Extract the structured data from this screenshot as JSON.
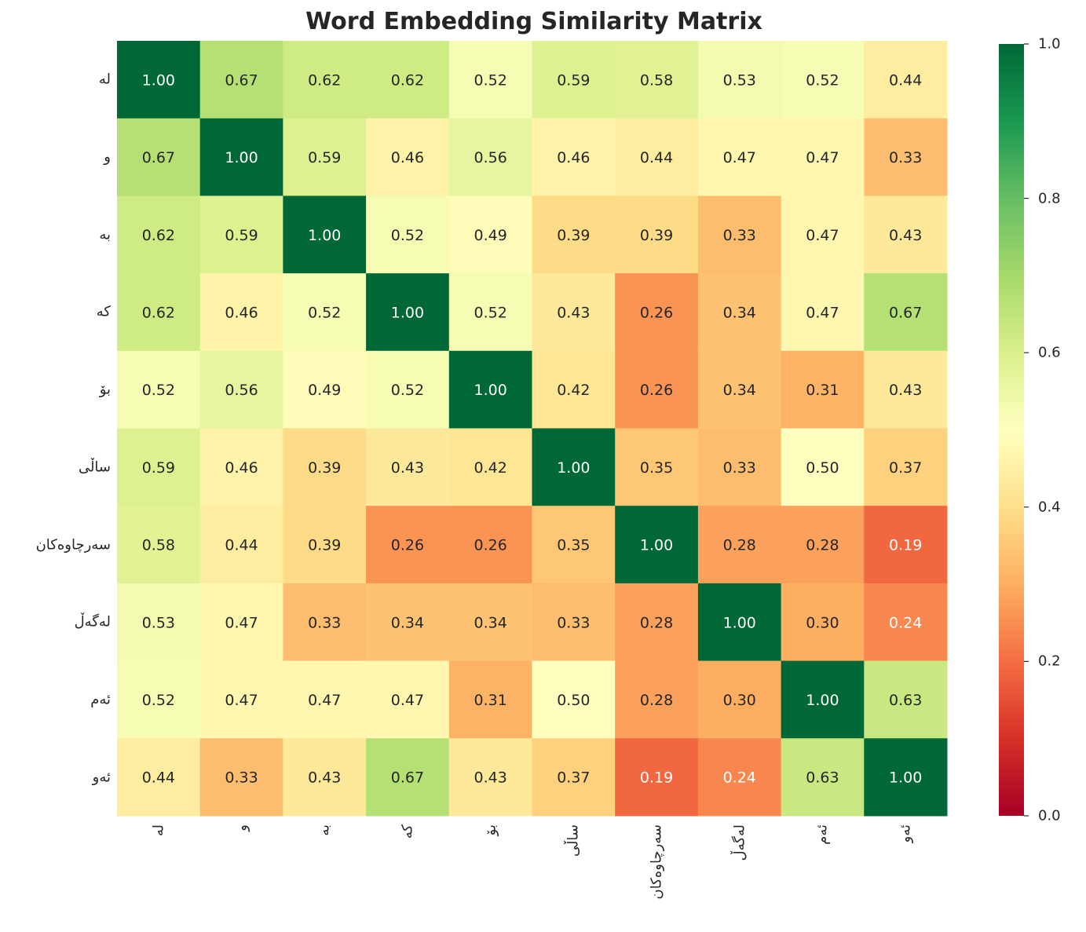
{
  "chart_data": {
    "type": "heatmap",
    "title": "Word Embedding Similarity Matrix",
    "colormap": "RdYlGn",
    "vmin": 0.0,
    "vmax": 1.0,
    "x_labels": [
      "لە",
      "و",
      "بە",
      "کە",
      "بۆ",
      "ساڵی",
      "سەرچاوەکان",
      "لەگەڵ",
      "ئەم",
      "ئەو"
    ],
    "y_labels": [
      "لە",
      "و",
      "بە",
      "کە",
      "بۆ",
      "ساڵی",
      "سەرچاوەکان",
      "لەگەڵ",
      "ئەم",
      "ئەو"
    ],
    "values": [
      [
        1.0,
        0.67,
        0.62,
        0.62,
        0.52,
        0.59,
        0.58,
        0.53,
        0.52,
        0.44
      ],
      [
        0.67,
        1.0,
        0.59,
        0.46,
        0.56,
        0.46,
        0.44,
        0.47,
        0.47,
        0.33
      ],
      [
        0.62,
        0.59,
        1.0,
        0.52,
        0.49,
        0.39,
        0.39,
        0.33,
        0.47,
        0.43
      ],
      [
        0.62,
        0.46,
        0.52,
        1.0,
        0.52,
        0.43,
        0.26,
        0.34,
        0.47,
        0.67
      ],
      [
        0.52,
        0.56,
        0.49,
        0.52,
        1.0,
        0.42,
        0.26,
        0.34,
        0.31,
        0.43
      ],
      [
        0.59,
        0.46,
        0.39,
        0.43,
        0.42,
        1.0,
        0.35,
        0.33,
        0.5,
        0.37
      ],
      [
        0.58,
        0.44,
        0.39,
        0.26,
        0.26,
        0.35,
        1.0,
        0.28,
        0.28,
        0.19
      ],
      [
        0.53,
        0.47,
        0.33,
        0.34,
        0.34,
        0.33,
        0.28,
        1.0,
        0.3,
        0.24
      ],
      [
        0.52,
        0.47,
        0.47,
        0.47,
        0.31,
        0.5,
        0.28,
        0.3,
        1.0,
        0.63
      ],
      [
        0.44,
        0.33,
        0.43,
        0.67,
        0.43,
        0.37,
        0.19,
        0.24,
        0.63,
        1.0
      ]
    ],
    "colorbar_ticks": [
      "0.0",
      "0.2",
      "0.4",
      "0.6",
      "0.8",
      "1.0"
    ],
    "annotations": true,
    "annotation_format": "2 decimals"
  }
}
